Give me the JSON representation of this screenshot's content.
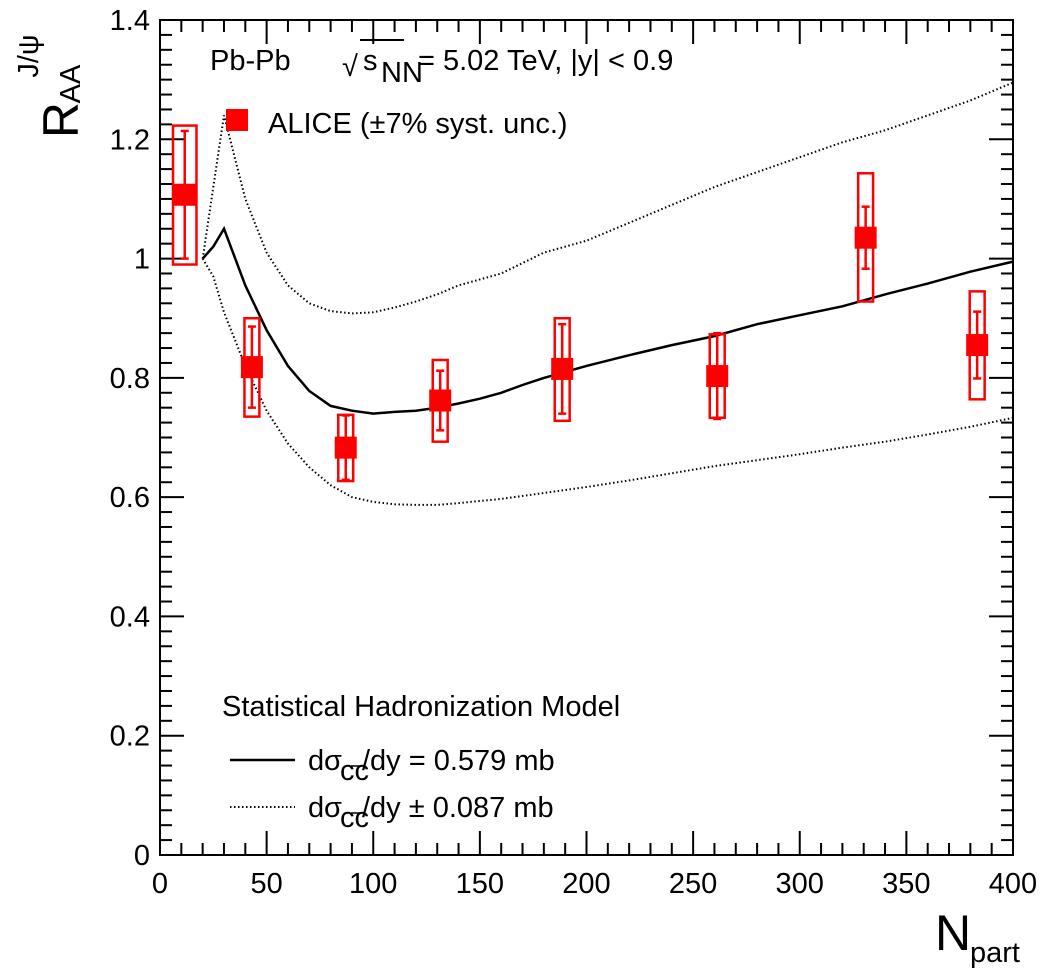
{
  "chart_data": {
    "type": "scatter",
    "title": "Pb-Pb √s_NN = 5.02 TeV, |y| < 0.9",
    "title_parts": {
      "prefix": "Pb-Pb ",
      "sqrt_symbol": "√",
      "s": "s",
      "s_sub": "NN",
      "suffix": " = 5.02 TeV, |y| < 0.9"
    },
    "xlabel": {
      "main": "N",
      "sub": "part"
    },
    "ylabel": {
      "main": "R",
      "sub": "AA",
      "sup": "J/ψ"
    },
    "xlim": [
      0,
      400
    ],
    "ylim": [
      0,
      1.4
    ],
    "x_ticks": [
      "0",
      "50",
      "100",
      "150",
      "200",
      "250",
      "300",
      "350",
      "400"
    ],
    "y_ticks": [
      "0",
      "0.2",
      "0.4",
      "0.6",
      "0.8",
      "1",
      "1.2",
      "1.4"
    ],
    "grid": false,
    "data_series": {
      "name": "ALICE (±7% syst. unc.)",
      "color": "#ff0000",
      "points": [
        {
          "x": 11.6,
          "y": 1.107,
          "stat": 0.107,
          "sys_lo": 0.99,
          "sys_hi": 1.223,
          "sys_w": 5.5
        },
        {
          "x": 43.1,
          "y": 0.818,
          "stat": 0.068,
          "sys_lo": 0.735,
          "sys_hi": 0.9,
          "sys_w": 3.5
        },
        {
          "x": 87.1,
          "y": 0.683,
          "stat": 0.054,
          "sys_lo": 0.627,
          "sys_hi": 0.738,
          "sys_w": 3.5
        },
        {
          "x": 131.4,
          "y": 0.762,
          "stat": 0.05,
          "sys_lo": 0.693,
          "sys_hi": 0.83,
          "sys_w": 3.5
        },
        {
          "x": 188.6,
          "y": 0.815,
          "stat": 0.075,
          "sys_lo": 0.728,
          "sys_hi": 0.9,
          "sys_w": 3.5
        },
        {
          "x": 261.3,
          "y": 0.803,
          "stat": 0.072,
          "sys_lo": 0.733,
          "sys_hi": 0.873,
          "sys_w": 3.5
        },
        {
          "x": 330.9,
          "y": 1.035,
          "stat": 0.052,
          "sys_lo": 0.928,
          "sys_hi": 1.143,
          "sys_w": 3.5
        },
        {
          "x": 383.2,
          "y": 0.855,
          "stat": 0.056,
          "sys_lo": 0.764,
          "sys_hi": 0.945,
          "sys_w": 3.5
        }
      ]
    },
    "model": {
      "title": "Statistical Hadronization Model",
      "central": {
        "name": "dσ_cc̄ /dy = 0.579 mb",
        "label_parts": {
          "d": "d",
          "sigma": "σ",
          "sub": "cc",
          "rest": " /dy = 0.579 mb"
        },
        "style": "solid",
        "points": [
          [
            20,
            1.0
          ],
          [
            25,
            1.02
          ],
          [
            30,
            1.05
          ],
          [
            40,
            0.955
          ],
          [
            50,
            0.88
          ],
          [
            60,
            0.82
          ],
          [
            70,
            0.778
          ],
          [
            80,
            0.753
          ],
          [
            90,
            0.745
          ],
          [
            100,
            0.74
          ],
          [
            110,
            0.743
          ],
          [
            120,
            0.745
          ],
          [
            130,
            0.75
          ],
          [
            140,
            0.757
          ],
          [
            150,
            0.765
          ],
          [
            160,
            0.775
          ],
          [
            170,
            0.788
          ],
          [
            180,
            0.8
          ],
          [
            190,
            0.81
          ],
          [
            200,
            0.82
          ],
          [
            220,
            0.838
          ],
          [
            240,
            0.855
          ],
          [
            260,
            0.87
          ],
          [
            280,
            0.89
          ],
          [
            300,
            0.905
          ],
          [
            320,
            0.92
          ],
          [
            340,
            0.94
          ],
          [
            360,
            0.958
          ],
          [
            380,
            0.978
          ],
          [
            400,
            0.995
          ]
        ]
      },
      "band": {
        "name": "dσ_cc̄ /dy ± 0.087 mb",
        "label_parts": {
          "d": "d",
          "sigma": "σ",
          "sub": "cc",
          "rest": " /dy ± 0.087 mb"
        },
        "style": "dotted",
        "upper": [
          [
            20,
            1.0
          ],
          [
            25,
            1.12
          ],
          [
            30,
            1.24
          ],
          [
            40,
            1.1
          ],
          [
            50,
            1.01
          ],
          [
            60,
            0.955
          ],
          [
            70,
            0.925
          ],
          [
            80,
            0.912
          ],
          [
            90,
            0.908
          ],
          [
            100,
            0.91
          ],
          [
            110,
            0.918
          ],
          [
            120,
            0.928
          ],
          [
            130,
            0.94
          ],
          [
            140,
            0.955
          ],
          [
            160,
            0.975
          ],
          [
            180,
            1.01
          ],
          [
            200,
            1.03
          ],
          [
            220,
            1.06
          ],
          [
            240,
            1.09
          ],
          [
            260,
            1.12
          ],
          [
            280,
            1.145
          ],
          [
            300,
            1.17
          ],
          [
            320,
            1.195
          ],
          [
            340,
            1.215
          ],
          [
            360,
            1.24
          ],
          [
            380,
            1.265
          ],
          [
            400,
            1.295
          ]
        ],
        "lower": [
          [
            20,
            1.0
          ],
          [
            25,
            0.97
          ],
          [
            30,
            0.91
          ],
          [
            40,
            0.82
          ],
          [
            50,
            0.745
          ],
          [
            60,
            0.69
          ],
          [
            70,
            0.65
          ],
          [
            80,
            0.62
          ],
          [
            90,
            0.6
          ],
          [
            100,
            0.592
          ],
          [
            110,
            0.588
          ],
          [
            120,
            0.587
          ],
          [
            130,
            0.587
          ],
          [
            140,
            0.59
          ],
          [
            160,
            0.597
          ],
          [
            180,
            0.607
          ],
          [
            200,
            0.617
          ],
          [
            220,
            0.628
          ],
          [
            240,
            0.64
          ],
          [
            260,
            0.652
          ],
          [
            280,
            0.662
          ],
          [
            300,
            0.672
          ],
          [
            320,
            0.683
          ],
          [
            340,
            0.693
          ],
          [
            360,
            0.705
          ],
          [
            380,
            0.718
          ],
          [
            400,
            0.733
          ]
        ]
      }
    }
  }
}
